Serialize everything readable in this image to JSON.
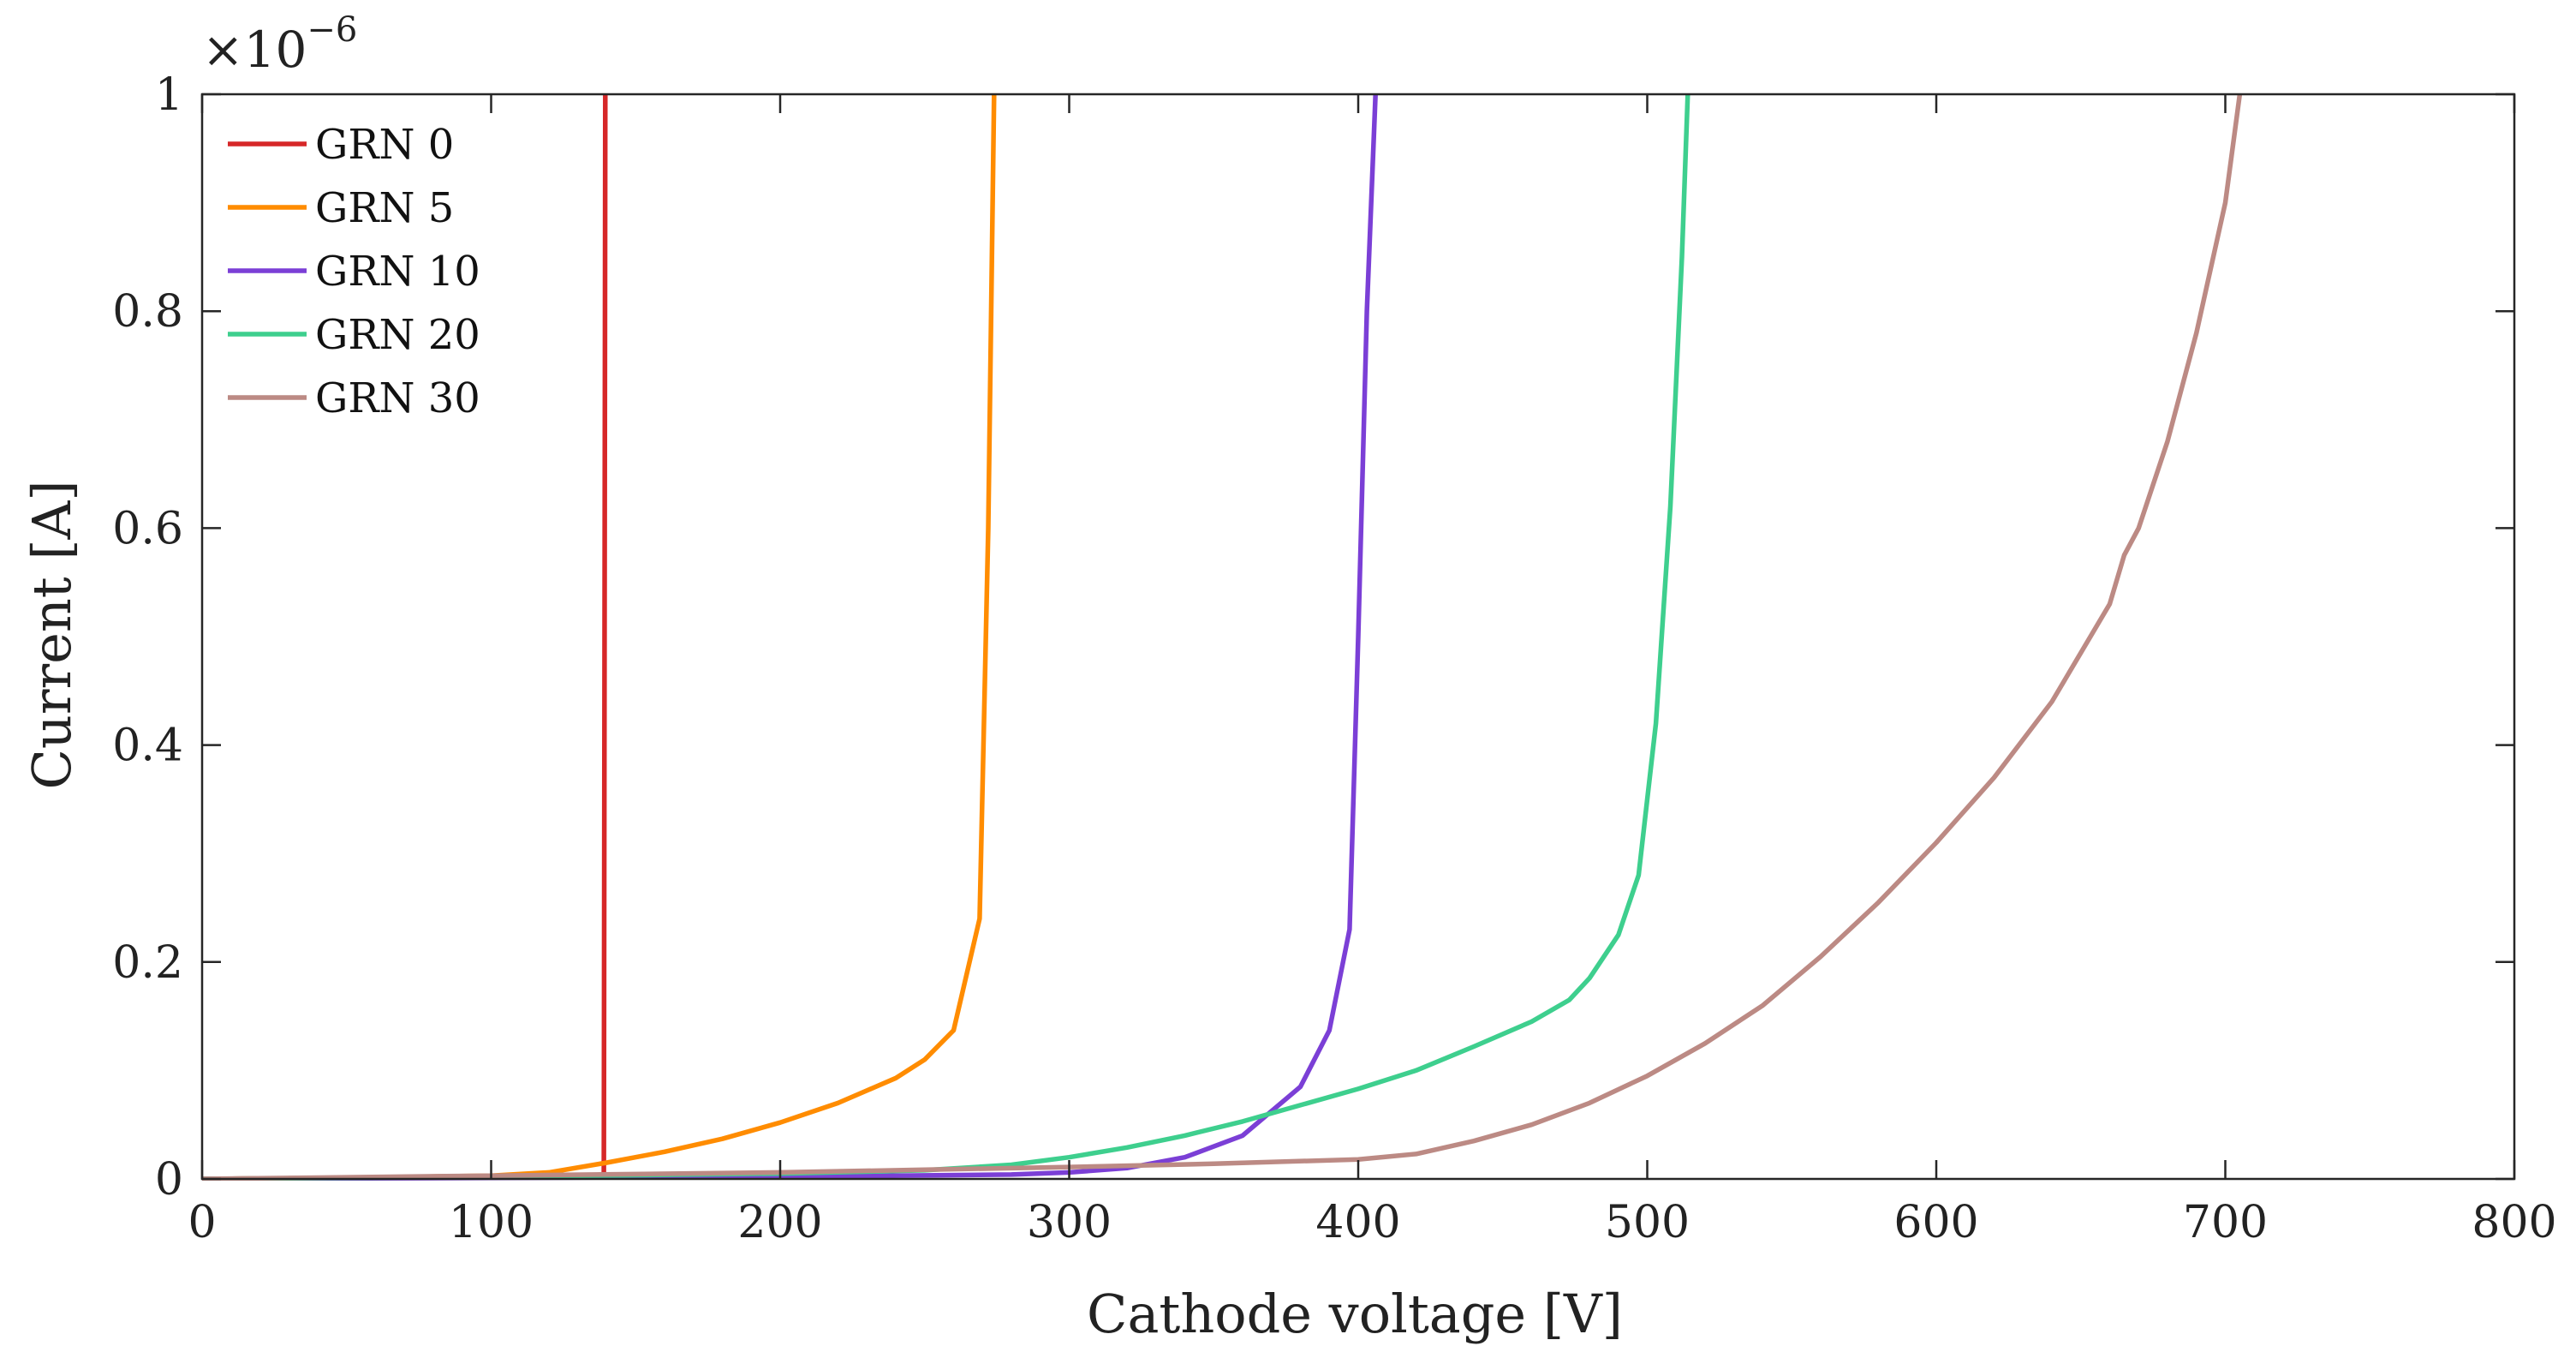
{
  "chart_data": {
    "type": "line",
    "title": "",
    "xlabel": "Cathode voltage [V]",
    "ylabel": "Current [A]",
    "xlim": [
      0,
      800
    ],
    "ylim": [
      0,
      1.0
    ],
    "y_scale_label": {
      "base": "×10",
      "exponent": "−6"
    },
    "xticks": [
      0,
      100,
      200,
      300,
      400,
      500,
      600,
      700,
      800
    ],
    "xtick_labels": [
      "0",
      "100",
      "200",
      "300",
      "400",
      "500",
      "600",
      "700",
      "800"
    ],
    "yticks": [
      0,
      0.2,
      0.4,
      0.6,
      0.8,
      1.0
    ],
    "ytick_labels": [
      "0",
      "0.2",
      "0.4",
      "0.6",
      "0.8",
      "1"
    ],
    "grid": false,
    "legend_position": "top-left",
    "series": [
      {
        "name": "GRN 0",
        "color": "#d62728",
        "points": [
          [
            0,
            0.0
          ],
          [
            50,
            0.001
          ],
          [
            100,
            0.002
          ],
          [
            130,
            0.003
          ],
          [
            139,
            0.004
          ],
          [
            139.5,
            1.0
          ]
        ]
      },
      {
        "name": "GRN 5",
        "color": "#ff8c00",
        "points": [
          [
            0,
            0.0
          ],
          [
            50,
            0.001
          ],
          [
            100,
            0.003
          ],
          [
            120,
            0.006
          ],
          [
            140,
            0.015
          ],
          [
            160,
            0.025
          ],
          [
            180,
            0.037
          ],
          [
            200,
            0.052
          ],
          [
            220,
            0.07
          ],
          [
            240,
            0.093
          ],
          [
            250,
            0.11
          ],
          [
            260,
            0.137
          ],
          [
            269,
            0.24
          ],
          [
            272,
            0.6
          ],
          [
            274,
            1.0
          ]
        ]
      },
      {
        "name": "GRN 10",
        "color": "#7b3fd6",
        "points": [
          [
            0,
            0.0
          ],
          [
            100,
            0.001
          ],
          [
            200,
            0.002
          ],
          [
            280,
            0.004
          ],
          [
            300,
            0.006
          ],
          [
            320,
            0.01
          ],
          [
            340,
            0.02
          ],
          [
            360,
            0.04
          ],
          [
            380,
            0.085
          ],
          [
            390,
            0.137
          ],
          [
            397,
            0.23
          ],
          [
            400,
            0.5
          ],
          [
            403,
            0.8
          ],
          [
            406,
            1.0
          ]
        ]
      },
      {
        "name": "GRN 20",
        "color": "#3ecf8e",
        "points": [
          [
            0,
            0.0
          ],
          [
            100,
            0.002
          ],
          [
            200,
            0.005
          ],
          [
            250,
            0.008
          ],
          [
            280,
            0.013
          ],
          [
            300,
            0.02
          ],
          [
            320,
            0.029
          ],
          [
            340,
            0.04
          ],
          [
            360,
            0.053
          ],
          [
            380,
            0.068
          ],
          [
            400,
            0.083
          ],
          [
            420,
            0.1
          ],
          [
            440,
            0.122
          ],
          [
            460,
            0.145
          ],
          [
            473,
            0.165
          ],
          [
            480,
            0.185
          ],
          [
            490,
            0.225
          ],
          [
            497,
            0.28
          ],
          [
            503,
            0.42
          ],
          [
            508,
            0.62
          ],
          [
            512,
            0.85
          ],
          [
            514,
            1.0
          ]
        ]
      },
      {
        "name": "GRN 30",
        "color": "#bc8a84",
        "points": [
          [
            0,
            0.0
          ],
          [
            100,
            0.003
          ],
          [
            200,
            0.006
          ],
          [
            300,
            0.011
          ],
          [
            350,
            0.014
          ],
          [
            400,
            0.018
          ],
          [
            420,
            0.023
          ],
          [
            440,
            0.035
          ],
          [
            460,
            0.05
          ],
          [
            480,
            0.07
          ],
          [
            500,
            0.095
          ],
          [
            520,
            0.125
          ],
          [
            540,
            0.16
          ],
          [
            560,
            0.205
          ],
          [
            580,
            0.255
          ],
          [
            600,
            0.31
          ],
          [
            620,
            0.37
          ],
          [
            640,
            0.44
          ],
          [
            660,
            0.53
          ],
          [
            665,
            0.575
          ],
          [
            670,
            0.6
          ],
          [
            680,
            0.68
          ],
          [
            690,
            0.78
          ],
          [
            700,
            0.9
          ],
          [
            705,
            1.0
          ]
        ]
      }
    ]
  }
}
